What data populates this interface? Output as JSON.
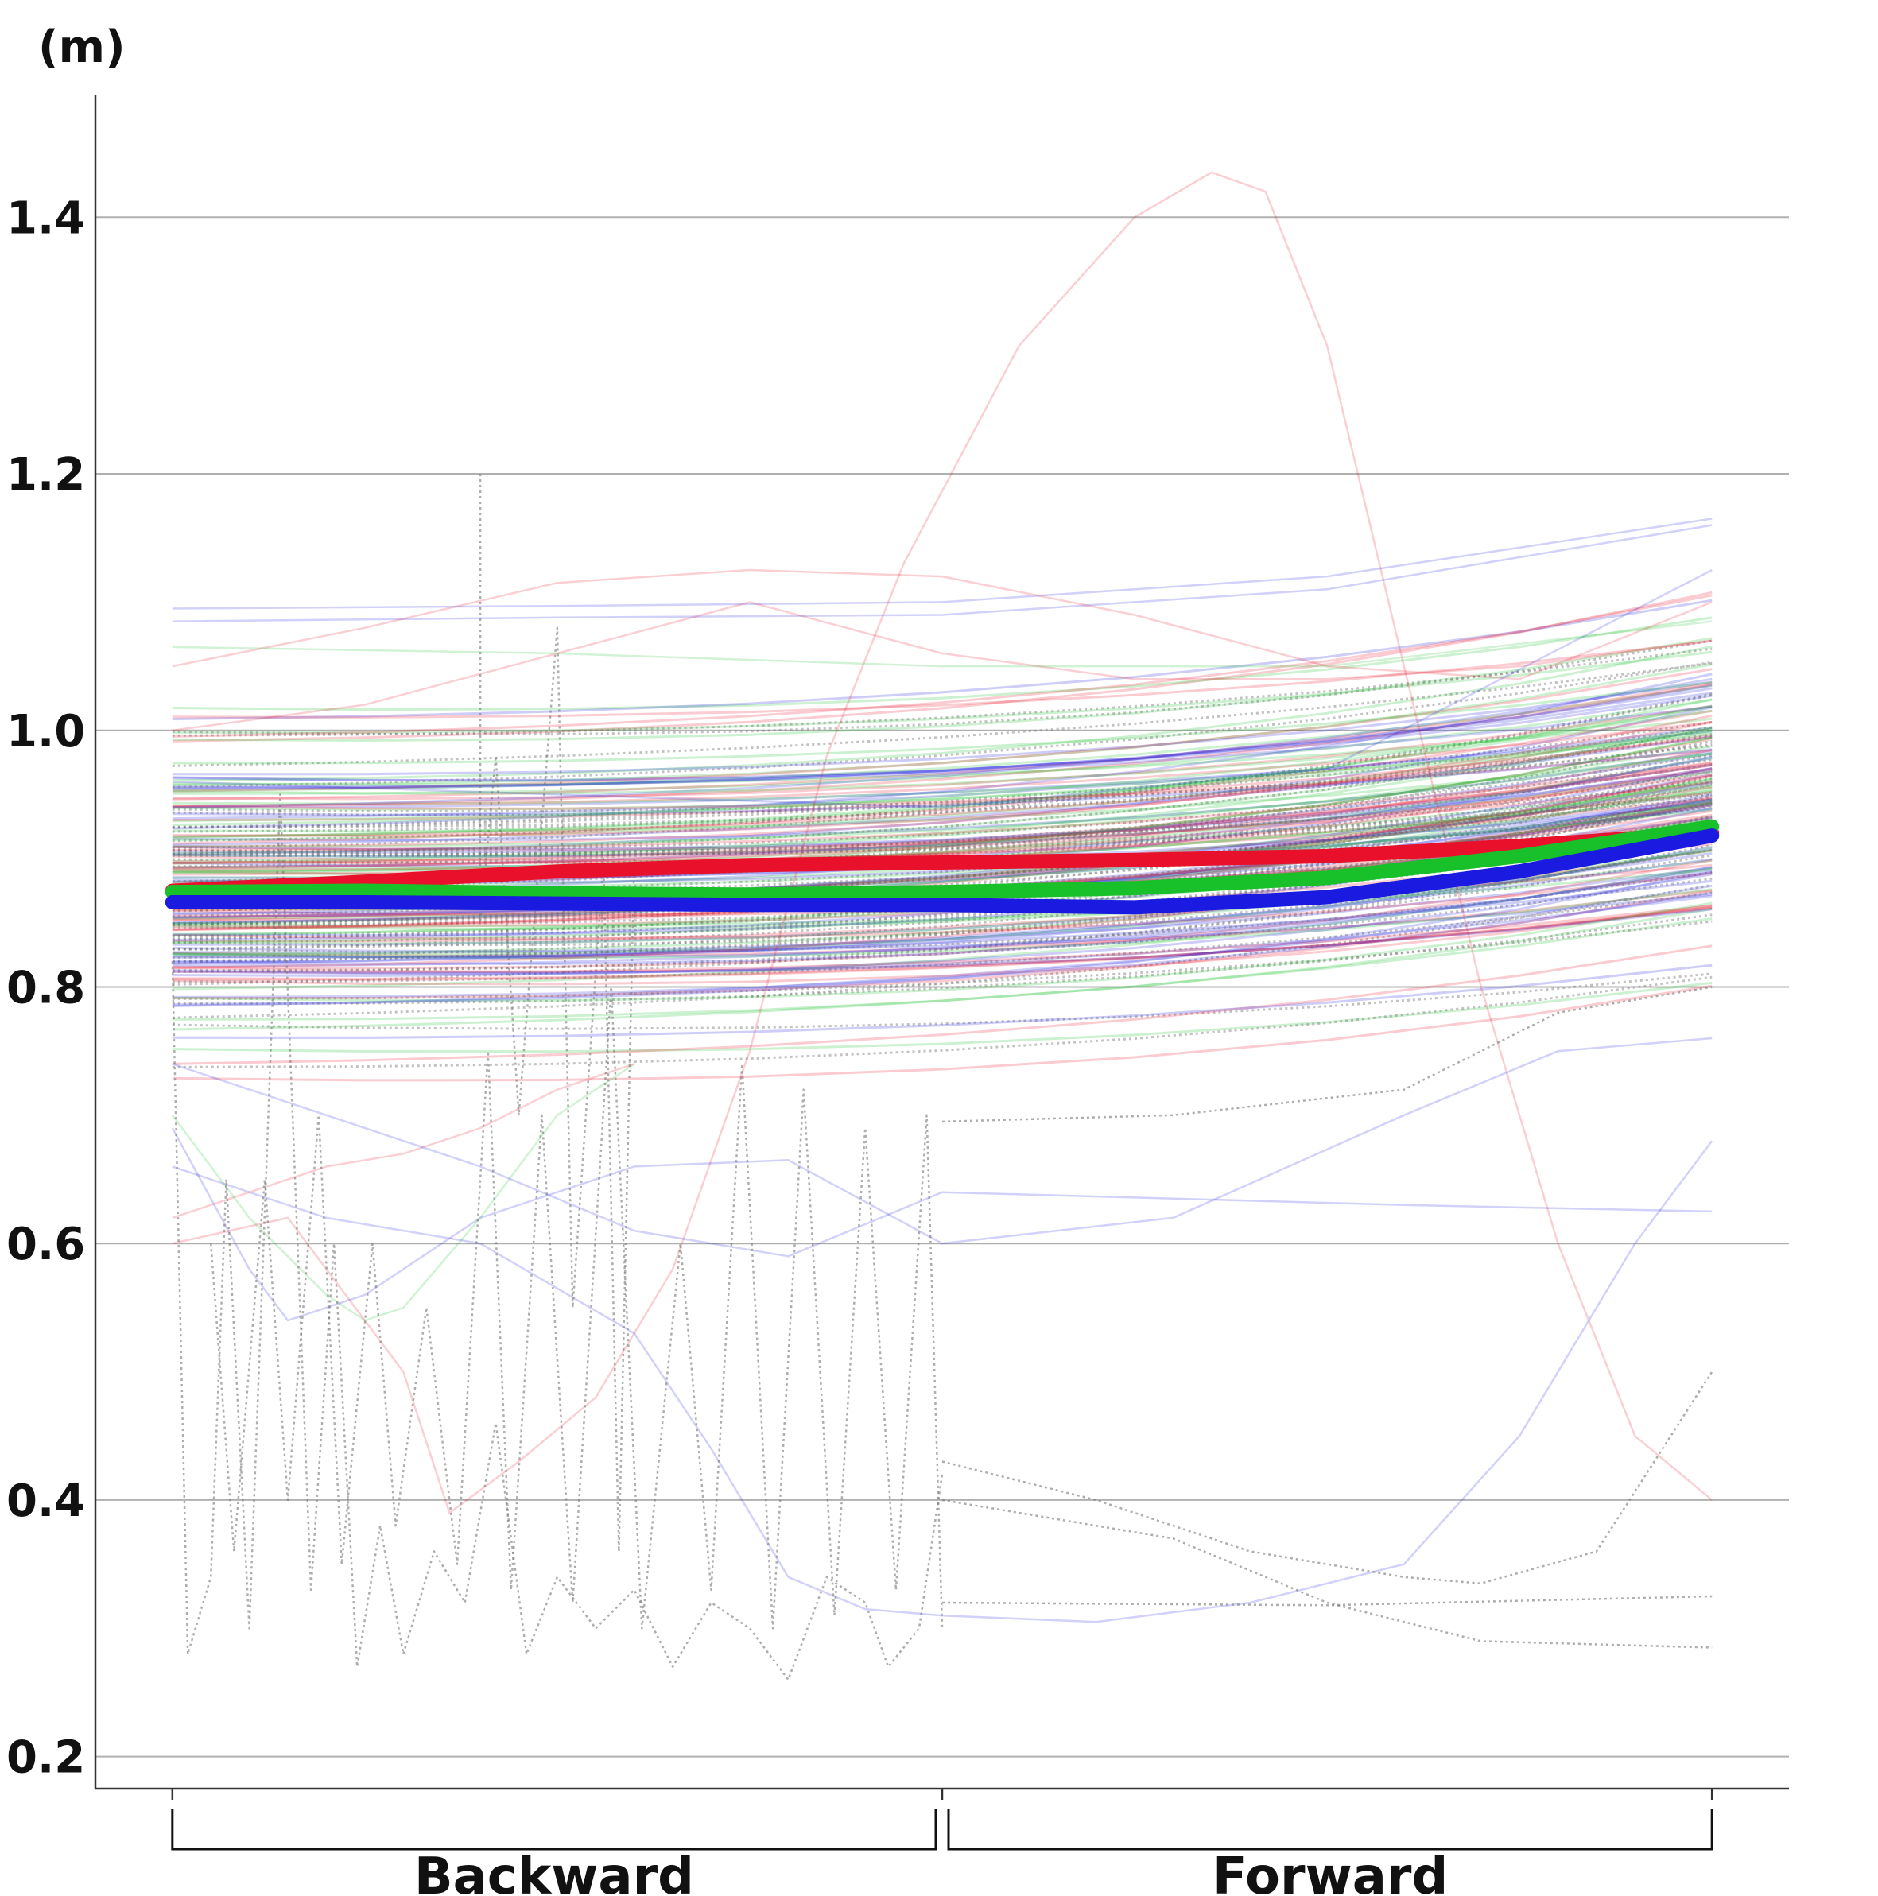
{
  "chart_data": {
    "type": "line",
    "ylabel": "(m)",
    "ylim": [
      0.175,
      1.495
    ],
    "yticks": [
      0.2,
      0.4,
      0.6,
      0.8,
      1.0,
      1.2,
      1.4
    ],
    "ytick_labels": [
      "0.2",
      "0.4",
      "0.6",
      "0.8",
      "1.0",
      "1.2",
      "1.4"
    ],
    "x": [
      0,
      1,
      2
    ],
    "xlim": [
      -0.1,
      2.1
    ],
    "phases": [
      {
        "label": "Backward",
        "start": 0,
        "end": 1
      },
      {
        "label": "Forward",
        "start": 1,
        "end": 2
      }
    ],
    "grid": "horizontal",
    "colors": {
      "red": "#e8102a",
      "green": "#18c02a",
      "blue": "#1a1ae0",
      "gray": "#777777"
    },
    "mean_series": [
      {
        "color": "#e8102a",
        "points": [
          [
            0,
            0.875
          ],
          [
            0.25,
            0.882
          ],
          [
            0.5,
            0.89
          ],
          [
            0.75,
            0.895
          ],
          [
            1.0,
            0.897
          ],
          [
            1.25,
            0.899
          ],
          [
            1.5,
            0.902
          ],
          [
            1.75,
            0.91
          ],
          [
            2.0,
            0.92
          ]
        ]
      },
      {
        "color": "#18c02a",
        "points": [
          [
            0,
            0.874
          ],
          [
            0.25,
            0.875
          ],
          [
            0.5,
            0.873
          ],
          [
            0.75,
            0.872
          ],
          [
            1.0,
            0.874
          ],
          [
            1.25,
            0.877
          ],
          [
            1.5,
            0.885
          ],
          [
            1.75,
            0.902
          ],
          [
            2.0,
            0.925
          ]
        ]
      },
      {
        "color": "#1a1ae0",
        "points": [
          [
            0,
            0.866
          ],
          [
            0.25,
            0.866
          ],
          [
            0.5,
            0.865
          ],
          [
            0.75,
            0.864
          ],
          [
            1.0,
            0.864
          ],
          [
            1.25,
            0.862
          ],
          [
            1.5,
            0.87
          ],
          [
            1.75,
            0.89
          ],
          [
            2.0,
            0.918
          ]
        ]
      }
    ],
    "individual_traces": [
      {
        "color": "#1a1ae0",
        "points": [
          [
            0,
            1.095
          ],
          [
            0.5,
            1.097
          ],
          [
            1.0,
            1.1
          ],
          [
            1.5,
            1.12
          ],
          [
            2.0,
            1.165
          ]
        ]
      },
      {
        "color": "#1a1ae0",
        "points": [
          [
            0,
            1.085
          ],
          [
            0.5,
            1.088
          ],
          [
            1.0,
            1.09
          ],
          [
            1.5,
            1.11
          ],
          [
            2.0,
            1.16
          ]
        ]
      },
      {
        "color": "#1a1ae0",
        "points": [
          [
            0,
            0.96
          ],
          [
            0.5,
            0.95
          ],
          [
            1.0,
            0.94
          ],
          [
            1.5,
            0.97
          ],
          [
            2.0,
            1.125
          ]
        ]
      },
      {
        "color": "#e8102a",
        "points": [
          [
            0,
            1.05
          ],
          [
            0.25,
            1.08
          ],
          [
            0.5,
            1.115
          ],
          [
            0.75,
            1.125
          ],
          [
            1.0,
            1.12
          ],
          [
            1.25,
            1.09
          ],
          [
            1.5,
            1.05
          ],
          [
            1.75,
            1.04
          ],
          [
            2.0,
            1.1
          ]
        ]
      },
      {
        "color": "#e8102a",
        "points": [
          [
            0,
            1.0
          ],
          [
            0.25,
            1.02
          ],
          [
            0.5,
            1.06
          ],
          [
            0.75,
            1.1
          ],
          [
            1.0,
            1.06
          ],
          [
            1.25,
            1.04
          ],
          [
            1.5,
            1.04
          ],
          [
            1.75,
            1.05
          ],
          [
            2.0,
            1.07
          ]
        ]
      },
      {
        "color": "#e8102a",
        "points": [
          [
            0,
            0.6
          ],
          [
            0.15,
            0.62
          ],
          [
            0.3,
            0.5
          ],
          [
            0.36,
            0.39
          ],
          [
            0.45,
            0.43
          ],
          [
            0.55,
            0.48
          ],
          [
            0.65,
            0.58
          ],
          [
            0.75,
            0.75
          ],
          [
            0.85,
            0.98
          ],
          [
            0.95,
            1.13
          ],
          [
            1.1,
            1.3
          ],
          [
            1.25,
            1.4
          ],
          [
            1.35,
            1.435
          ],
          [
            1.42,
            1.42
          ],
          [
            1.5,
            1.3
          ],
          [
            1.6,
            1.05
          ],
          [
            1.7,
            0.8
          ],
          [
            1.8,
            0.6
          ],
          [
            1.9,
            0.45
          ],
          [
            2.0,
            0.4
          ]
        ]
      },
      {
        "color": "#e8102a",
        "points": [
          [
            0,
            0.62
          ],
          [
            0.1,
            0.64
          ],
          [
            0.2,
            0.66
          ],
          [
            0.3,
            0.67
          ],
          [
            0.4,
            0.69
          ],
          [
            0.5,
            0.72
          ],
          [
            0.6,
            0.74
          ]
        ]
      },
      {
        "color": "#18c02a",
        "points": [
          [
            0,
            0.7
          ],
          [
            0.1,
            0.62
          ],
          [
            0.2,
            0.56
          ],
          [
            0.25,
            0.54
          ],
          [
            0.3,
            0.55
          ],
          [
            0.4,
            0.62
          ],
          [
            0.5,
            0.7
          ],
          [
            0.6,
            0.74
          ]
        ]
      },
      {
        "color": "#18c02a",
        "points": [
          [
            0,
            1.065
          ],
          [
            0.5,
            1.06
          ],
          [
            1.0,
            1.05
          ],
          [
            1.5,
            1.05
          ],
          [
            2.0,
            1.085
          ]
        ]
      },
      {
        "color": "#1a1ae0",
        "points": [
          [
            0,
            0.74
          ],
          [
            0.2,
            0.7
          ],
          [
            0.4,
            0.66
          ],
          [
            0.6,
            0.61
          ],
          [
            0.8,
            0.59
          ],
          [
            1.0,
            0.64
          ],
          [
            1.3,
            0.635
          ],
          [
            1.6,
            0.63
          ],
          [
            2.0,
            0.625
          ]
        ]
      },
      {
        "color": "#1a1ae0",
        "points": [
          [
            0,
            0.69
          ],
          [
            0.1,
            0.58
          ],
          [
            0.15,
            0.54
          ],
          [
            0.25,
            0.56
          ],
          [
            0.4,
            0.62
          ],
          [
            0.6,
            0.66
          ],
          [
            0.8,
            0.665
          ],
          [
            1.0,
            0.6
          ],
          [
            1.3,
            0.62
          ],
          [
            1.6,
            0.7
          ],
          [
            1.8,
            0.75
          ],
          [
            2.0,
            0.76
          ]
        ]
      },
      {
        "color": "#1a1ae0",
        "points": [
          [
            0,
            0.66
          ],
          [
            0.2,
            0.62
          ],
          [
            0.4,
            0.6
          ],
          [
            0.6,
            0.53
          ],
          [
            0.7,
            0.44
          ],
          [
            0.8,
            0.34
          ],
          [
            0.9,
            0.315
          ],
          [
            1.0,
            0.31
          ],
          [
            1.2,
            0.305
          ],
          [
            1.4,
            0.32
          ],
          [
            1.6,
            0.35
          ],
          [
            1.75,
            0.45
          ],
          [
            1.9,
            0.6
          ],
          [
            2.0,
            0.68
          ]
        ]
      },
      {
        "color": "#777777",
        "dashed": true,
        "points": [
          [
            1.0,
            0.695
          ],
          [
            1.3,
            0.7
          ],
          [
            1.6,
            0.72
          ],
          [
            1.8,
            0.78
          ],
          [
            2.0,
            0.8
          ]
        ]
      },
      {
        "color": "#777777",
        "dashed": true,
        "points": [
          [
            1.0,
            0.43
          ],
          [
            1.2,
            0.4
          ],
          [
            1.4,
            0.36
          ],
          [
            1.6,
            0.34
          ],
          [
            1.7,
            0.335
          ],
          [
            1.85,
            0.36
          ],
          [
            2.0,
            0.5
          ]
        ]
      },
      {
        "color": "#777777",
        "dashed": true,
        "points": [
          [
            1.0,
            0.4
          ],
          [
            1.3,
            0.37
          ],
          [
            1.5,
            0.32
          ],
          [
            1.7,
            0.29
          ],
          [
            2.0,
            0.285
          ]
        ]
      },
      {
        "color": "#777777",
        "dashed": true,
        "points": [
          [
            1.0,
            0.32
          ],
          [
            1.5,
            0.318
          ],
          [
            2.0,
            0.325
          ]
        ]
      },
      {
        "color": "#777777",
        "dashed": true,
        "points": [
          [
            0.4,
            1.2
          ],
          [
            0.4,
            0.85
          ],
          [
            0.42,
            0.98
          ],
          [
            0.45,
            0.7
          ],
          [
            0.5,
            1.08
          ],
          [
            0.52,
            0.55
          ],
          [
            0.56,
            0.9
          ],
          [
            0.58,
            0.36
          ],
          [
            0.6,
            0.9
          ]
        ]
      },
      {
        "color": "#777777",
        "dashed": true,
        "points": [
          [
            0,
            0.82
          ],
          [
            0.02,
            0.28
          ],
          [
            0.05,
            0.34
          ],
          [
            0.07,
            0.65
          ],
          [
            0.1,
            0.3
          ],
          [
            0.14,
            0.95
          ],
          [
            0.18,
            0.33
          ],
          [
            0.21,
            0.6
          ],
          [
            0.24,
            0.27
          ],
          [
            0.27,
            0.38
          ],
          [
            0.3,
            0.28
          ],
          [
            0.34,
            0.36
          ],
          [
            0.38,
            0.32
          ],
          [
            0.42,
            0.46
          ],
          [
            0.46,
            0.28
          ],
          [
            0.5,
            0.34
          ],
          [
            0.55,
            0.3
          ],
          [
            0.6,
            0.33
          ],
          [
            0.65,
            0.27
          ],
          [
            0.7,
            0.32
          ],
          [
            0.75,
            0.3
          ],
          [
            0.8,
            0.26
          ],
          [
            0.85,
            0.34
          ],
          [
            0.9,
            0.32
          ],
          [
            0.93,
            0.27
          ],
          [
            0.97,
            0.3
          ],
          [
            1.0,
            0.42
          ]
        ]
      },
      {
        "color": "#777777",
        "dashed": true,
        "points": [
          [
            0.05,
            0.6
          ],
          [
            0.08,
            0.36
          ],
          [
            0.12,
            0.65
          ],
          [
            0.15,
            0.4
          ],
          [
            0.19,
            0.7
          ],
          [
            0.22,
            0.35
          ],
          [
            0.26,
            0.6
          ],
          [
            0.29,
            0.38
          ],
          [
            0.33,
            0.55
          ],
          [
            0.37,
            0.35
          ],
          [
            0.41,
            0.75
          ],
          [
            0.44,
            0.33
          ],
          [
            0.48,
            0.7
          ],
          [
            0.52,
            0.32
          ],
          [
            0.57,
            0.8
          ],
          [
            0.61,
            0.3
          ],
          [
            0.66,
            0.6
          ],
          [
            0.7,
            0.33
          ],
          [
            0.74,
            0.74
          ],
          [
            0.78,
            0.3
          ],
          [
            0.82,
            0.72
          ],
          [
            0.86,
            0.31
          ],
          [
            0.9,
            0.69
          ],
          [
            0.94,
            0.33
          ],
          [
            0.98,
            0.7
          ],
          [
            1.0,
            0.3
          ]
        ]
      }
    ],
    "band": {
      "count": 220,
      "center_start": 0.87,
      "center_end": 0.91,
      "spread_start": 0.115,
      "spread_end": 0.1,
      "rise": 0.02
    }
  }
}
